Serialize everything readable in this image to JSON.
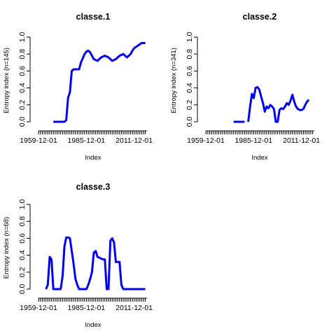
{
  "chart_data": [
    {
      "type": "line",
      "title": "classe.1",
      "xlabel": "Index",
      "ylabel": "Entropy index (n=145)",
      "ylim": [
        0,
        1
      ],
      "yticks": [
        "0.0",
        "0.2",
        "0.4",
        "0.6",
        "0.8",
        "1.0"
      ],
      "xticks": [
        "1959-12-01",
        "1985-12-01",
        "2011-12-01"
      ],
      "xticks_years": [
        1959.92,
        1985.92,
        2011.92
      ],
      "xlim_years": [
        1959.92,
        2018.92
      ],
      "line_color": "#0000ee",
      "series": [
        {
          "x": [
            1968,
            1970,
            1972,
            1974,
            1975,
            1976,
            1977,
            1978,
            1979,
            1980,
            1982,
            1983,
            1984,
            1985,
            1986,
            1987,
            1988,
            1989,
            1990,
            1992,
            1994,
            1996,
            1998,
            2000,
            2002,
            2004,
            2006,
            2008,
            2010,
            2011,
            2012,
            2014,
            2016,
            2018
          ],
          "y": [
            0.0,
            0.0,
            0.0,
            0.0,
            0.02,
            0.28,
            0.35,
            0.6,
            0.62,
            0.62,
            0.62,
            0.7,
            0.75,
            0.8,
            0.83,
            0.84,
            0.82,
            0.78,
            0.74,
            0.72,
            0.76,
            0.78,
            0.76,
            0.72,
            0.74,
            0.78,
            0.8,
            0.76,
            0.8,
            0.84,
            0.87,
            0.9,
            0.93,
            0.93
          ]
        }
      ]
    },
    {
      "type": "line",
      "title": "classe.2",
      "xlabel": "Index",
      "ylabel": "Entropy index (n=341)",
      "ylim": [
        0,
        1
      ],
      "yticks": [
        "0.0",
        "0.2",
        "0.4",
        "0.6",
        "0.8",
        "1.0"
      ],
      "xticks": [
        "1959-12-01",
        "1985-12-01",
        "2011-12-01"
      ],
      "xticks_years": [
        1959.92,
        1985.92,
        2011.92
      ],
      "xlim_years": [
        1959.92,
        2018.92
      ],
      "line_color": "#0000ee",
      "series": [
        {
          "x": [
            1975,
            1977,
            1979,
            1981,
            1981.5,
            1983,
            1984,
            1985,
            1986,
            1987,
            1988,
            1989,
            1990,
            1991,
            1992,
            1993,
            1994,
            1995,
            1996,
            1997,
            1998,
            1999,
            2000,
            2001,
            2002,
            2003,
            2004,
            2005,
            2006,
            2007,
            2008,
            2009,
            2010,
            2011,
            2012,
            2013,
            2014,
            2015,
            2016,
            2017,
            2018
          ],
          "y": [
            0.0,
            0.0,
            0.0,
            0.0,
            null,
            0.0,
            0.18,
            0.33,
            0.28,
            0.4,
            0.41,
            0.38,
            0.3,
            0.22,
            0.12,
            0.18,
            0.16,
            0.2,
            0.18,
            0.15,
            0.0,
            0.0,
            0.14,
            0.16,
            0.15,
            0.18,
            0.22,
            0.2,
            0.25,
            0.32,
            0.24,
            0.18,
            0.15,
            0.14,
            0.14,
            0.15,
            0.2,
            0.24,
            0.26,
            null,
            null
          ]
        }
      ]
    },
    {
      "type": "line",
      "title": "classe.3",
      "xlabel": "Index",
      "ylabel": "Entropy index (n=68)",
      "ylim": [
        0,
        1
      ],
      "yticks": [
        "0.0",
        "0.2",
        "0.4",
        "0.6",
        "0.8",
        "1.0"
      ],
      "xticks": [
        "1959-12-01",
        "1985-12-01",
        "2011-12-01"
      ],
      "xticks_years": [
        1959.92,
        1985.92,
        2011.92
      ],
      "xlim_years": [
        1959.92,
        2018.92
      ],
      "line_color": "#0000ee",
      "series": [
        {
          "x": [
            1964,
            1965,
            1966,
            1967,
            1968,
            1969,
            1970,
            1971,
            1972,
            1973,
            1974,
            1975,
            1976,
            1977,
            1978,
            1979,
            1980,
            1981,
            1982,
            1983,
            1984,
            1985,
            1986,
            1987,
            1988,
            1989,
            1990,
            1991,
            1992,
            1993,
            1994,
            1995,
            1996,
            1997,
            1998,
            1999,
            2000,
            2001,
            2002,
            2003,
            2004,
            2005,
            2006,
            2007,
            2008,
            2010,
            2012,
            2014,
            2016,
            2018
          ],
          "y": [
            0.0,
            0.05,
            0.38,
            0.35,
            0.0,
            0.0,
            0.0,
            0.0,
            0.0,
            0.15,
            0.5,
            0.61,
            0.61,
            0.6,
            0.45,
            0.3,
            0.12,
            0.05,
            0.0,
            0.0,
            0.0,
            0.0,
            0.0,
            0.05,
            0.12,
            0.2,
            0.43,
            0.45,
            0.38,
            0.37,
            0.36,
            0.35,
            0.35,
            0.0,
            0.0,
            0.57,
            0.6,
            0.55,
            0.32,
            0.32,
            0.32,
            0.05,
            0.0,
            0.0,
            0.0,
            0.0,
            0.0,
            0.0,
            0.0,
            0.0
          ]
        }
      ]
    }
  ]
}
